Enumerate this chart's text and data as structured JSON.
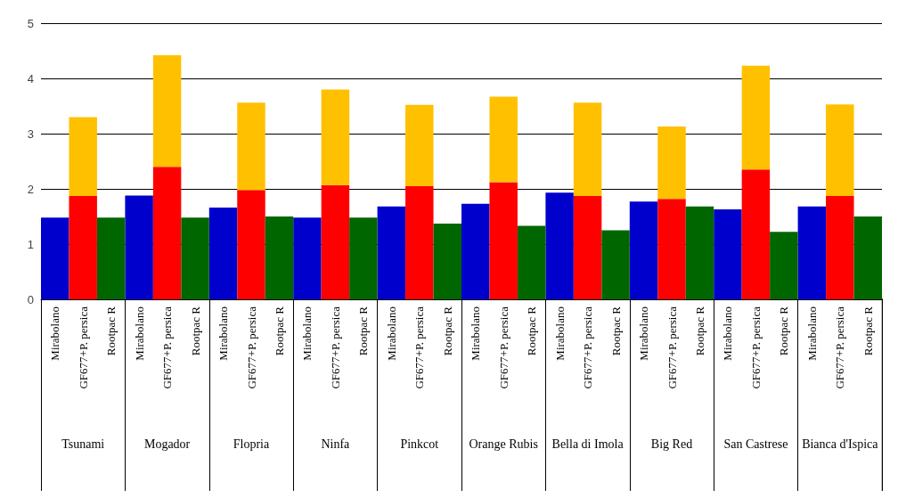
{
  "chart_data": {
    "type": "bar",
    "stacked": true,
    "categories": [
      "Mirabolano",
      "GF677+P. persica",
      "Rootpac R",
      "Mirabolano",
      "GF677+P. persica",
      "Rootpac R",
      "Mirabolano",
      "GF677+P. persica",
      "Rootpac R",
      "Mirabolano",
      "GF677+P. persica",
      "Rootpac R",
      "Mirabolano",
      "GF677+P. persica",
      "Rootpac R",
      "Mirabolano",
      "GF677+P. persica",
      "Rootpac R",
      "Mirabolano",
      "GF677+P. persica",
      "Rootpac R",
      "Mirabolano",
      "GF677+P. persica",
      "Rootpac R",
      "Mirabolano",
      "GF677+P. persica",
      "Rootpac R",
      "Mirabolano",
      "GF677+P. persica",
      "Rootpac R"
    ],
    "series": [
      {
        "color": "#0000cc",
        "values": [
          1.48,
          null,
          null,
          1.88,
          null,
          null,
          1.66,
          null,
          null,
          1.48,
          null,
          null,
          1.68,
          null,
          null,
          1.73,
          null,
          null,
          1.93,
          null,
          null,
          1.77,
          null,
          null,
          1.63,
          null,
          null,
          1.68,
          null,
          null
        ]
      },
      {
        "color": "#ff0000",
        "values": [
          null,
          1.87,
          null,
          null,
          2.4,
          null,
          null,
          1.98,
          null,
          null,
          2.07,
          null,
          null,
          2.05,
          null,
          null,
          2.12,
          null,
          null,
          1.87,
          null,
          null,
          1.82,
          null,
          null,
          2.35,
          null,
          null,
          1.87,
          null
        ]
      },
      {
        "color": "#ffc000",
        "values": [
          null,
          1.43,
          null,
          null,
          2.02,
          null,
          null,
          1.58,
          null,
          null,
          1.73,
          null,
          null,
          1.47,
          null,
          null,
          1.55,
          null,
          null,
          1.69,
          null,
          null,
          1.31,
          null,
          null,
          1.88,
          null,
          null,
          1.66,
          null
        ]
      },
      {
        "color": "#006600",
        "values": [
          null,
          null,
          1.48,
          null,
          null,
          1.48,
          null,
          null,
          1.5,
          null,
          null,
          1.48,
          null,
          null,
          1.37,
          null,
          null,
          1.33,
          null,
          null,
          1.25,
          null,
          null,
          1.68,
          null,
          null,
          1.22,
          null,
          null,
          1.5
        ]
      }
    ],
    "annotations": [
      "Tsunami",
      "Mogador",
      "Flopria",
      "Ninfa",
      "Pinkcot",
      "Orange Rubis",
      "Bella di Imola",
      "Big Red",
      "San Castrese",
      "Bianca d'Ispica"
    ],
    "ylim": [
      0,
      5
    ],
    "yticks": [
      0,
      1,
      2,
      3,
      4,
      5
    ],
    "grid": "y"
  }
}
